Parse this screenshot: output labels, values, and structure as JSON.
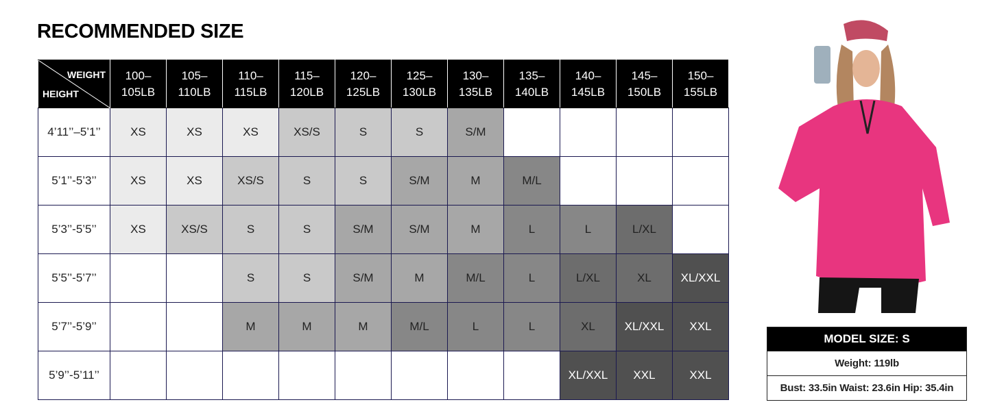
{
  "title": "RECOMMENDED SIZE",
  "corner": {
    "weight": "WEIGHT",
    "height": "HEIGHT"
  },
  "weights": [
    "100–\n105LB",
    "105–\n110LB",
    "110–\n115LB",
    "115–\n120LB",
    "120–\n125LB",
    "125–\n130LB",
    "130–\n135LB",
    "135–\n140LB",
    "140–\n145LB",
    "145–\n150LB",
    "150–\n155LB"
  ],
  "rows": [
    {
      "height": "4’11’’–5’1’’",
      "sizes": [
        "XS",
        "XS",
        "XS",
        "XS/S",
        "S",
        "S",
        "S/M",
        "",
        "",
        "",
        ""
      ]
    },
    {
      "height": "5’1’’-5’3’’",
      "sizes": [
        "XS",
        "XS",
        "XS/S",
        "S",
        "S",
        "S/M",
        "M",
        "M/L",
        "",
        "",
        ""
      ]
    },
    {
      "height": "5’3’’-5’5’’",
      "sizes": [
        "XS",
        "XS/S",
        "S",
        "S",
        "S/M",
        "S/M",
        "M",
        "L",
        "L",
        "L/XL",
        ""
      ]
    },
    {
      "height": "5’5’’-5’7’’",
      "sizes": [
        "",
        "",
        "S",
        "S",
        "S/M",
        "M",
        "M/L",
        "L",
        "L/XL",
        "XL",
        "XL/XXL"
      ]
    },
    {
      "height": "5’7’’-5’9’’",
      "sizes": [
        "",
        "",
        "M",
        "M",
        "M",
        "M/L",
        "L",
        "L",
        "XL",
        "XL/XXL",
        "XXL"
      ]
    },
    {
      "height": "5’9’’-5’11’’",
      "sizes": [
        "",
        "",
        "",
        "",
        "",
        "",
        "",
        "",
        "XL/XXL",
        "XXL",
        "XXL"
      ]
    }
  ],
  "size_colors": {
    "XS": "#ebebeb",
    "XS/S": "#c9c9c9",
    "S": "#c9c9c9",
    "S/M": "#a7a7a7",
    "M": "#a7a7a7",
    "M/L": "#878787",
    "L": "#878787",
    "L/XL": "#6d6d6d",
    "XL": "#6d6d6d",
    "XL/XXL": "#505050",
    "XXL": "#505050"
  },
  "model": {
    "header": "MODEL SIZE: S",
    "weight": "Weight: 119lb",
    "measurements": "Bust: 33.5in Waist: 23.6in Hip: 35.4in"
  },
  "photo": {
    "shirt_color": "#e8357f"
  }
}
